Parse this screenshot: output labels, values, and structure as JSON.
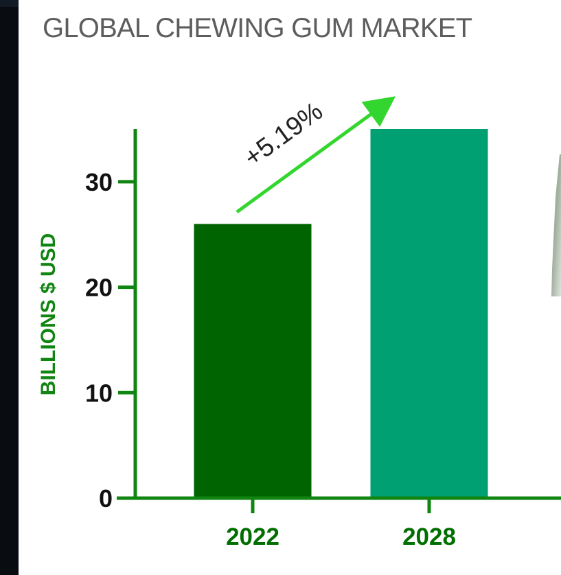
{
  "title": "GLOBAL CHEWING GUM MARKET",
  "chart_data": {
    "type": "bar",
    "title": "GLOBAL CHEWING GUM MARKET",
    "xlabel": "",
    "ylabel": "BILLIONS $ USD",
    "categories": [
      "2022",
      "2028"
    ],
    "values": [
      26,
      35
    ],
    "ylim": [
      0,
      35
    ],
    "yticks": [
      "0",
      "10",
      "20",
      "30"
    ],
    "bar_colors": [
      "#006400",
      "#00A072"
    ],
    "annotation": "+5.19%",
    "annotation_arrow_color": "#33D62E",
    "axis_color": "#118511"
  }
}
